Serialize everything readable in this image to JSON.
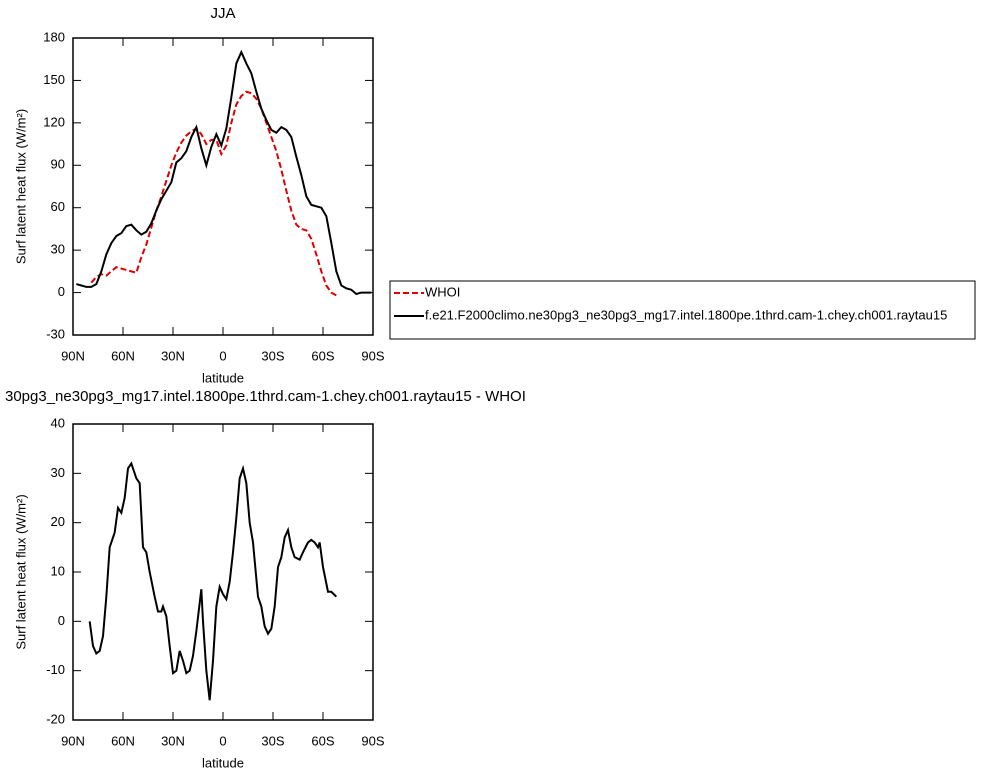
{
  "chart_data": [
    {
      "type": "line",
      "title": "JJA",
      "x_label": "latitude",
      "y_label": "Surf latent heat flux (W/m²)",
      "x": [
        88,
        85,
        82,
        79,
        76,
        73,
        70,
        67,
        64,
        61,
        58,
        55,
        52,
        49,
        46,
        43,
        40,
        37,
        34,
        31,
        28,
        25,
        22,
        19,
        16,
        13,
        10,
        7,
        4,
        1,
        -2,
        -5,
        -8,
        -11,
        -14,
        -17,
        -20,
        -23,
        -26,
        -29,
        -32,
        -35,
        -38,
        -41,
        -44,
        -47,
        -50,
        -53,
        -56,
        -59,
        -62,
        -65,
        -68,
        -71,
        -74,
        -77,
        -80,
        -83,
        -86,
        -89
      ],
      "series": [
        {
          "name": "WHOI",
          "color": "#e00000",
          "dash": true,
          "values": [
            null,
            null,
            null,
            7,
            11,
            13,
            12,
            15,
            18,
            17,
            16,
            15,
            14,
            25,
            34,
            46,
            58,
            68,
            79,
            90,
            99,
            106,
            111,
            114,
            116,
            112,
            105,
            108,
            108,
            98,
            104,
            120,
            133,
            139,
            142,
            141,
            137,
            130,
            120,
            110,
            100,
            87,
            72,
            58,
            48,
            45,
            44,
            38,
            27,
            15,
            5,
            0,
            -2,
            null,
            null,
            null,
            null,
            null,
            null,
            null
          ]
        },
        {
          "name": "f.e21.F2000climo.ne30pg3_ne30pg3_mg17.intel.1800pe.1thrd.cam-1.chey.ch001.raytau15",
          "color": "#000000",
          "dash": false,
          "values": [
            6,
            5,
            4,
            4,
            6,
            15,
            27,
            35,
            40,
            42,
            47,
            48,
            44,
            41,
            43,
            49,
            58,
            66,
            72,
            78,
            92,
            95,
            100,
            110,
            117,
            102,
            90,
            103,
            112,
            104,
            116,
            138,
            162,
            170,
            162,
            155,
            142,
            130,
            122,
            115,
            113,
            117,
            115,
            110,
            96,
            83,
            68,
            62,
            61,
            60,
            54,
            35,
            15,
            5,
            3,
            2,
            -1,
            0,
            0,
            0
          ]
        }
      ],
      "xlim": [
        90,
        -90
      ],
      "xticks": [
        {
          "value": 90,
          "label": "90N"
        },
        {
          "value": 60,
          "label": "60N"
        },
        {
          "value": 30,
          "label": "30N"
        },
        0,
        {
          "value": -30,
          "label": "30S"
        },
        {
          "value": -60,
          "label": "60S"
        },
        {
          "value": -90,
          "label": "90S"
        }
      ],
      "ylim": [
        -30,
        180
      ],
      "yticks": [
        -30,
        0,
        30,
        60,
        90,
        120,
        150,
        180
      ],
      "legend": "right"
    },
    {
      "type": "line",
      "title": "30pg3_ne30pg3_mg17.intel.1800pe.1thrd.cam-1.chey.ch001.raytau15 - WHOI",
      "x_label": "latitude",
      "y_label": "Surf latent heat flux (W/m²)",
      "x": [
        80,
        78,
        76,
        74,
        72,
        70,
        68,
        65,
        63,
        61,
        59,
        57,
        55,
        52,
        50,
        48,
        46,
        44,
        41,
        39,
        37,
        36,
        34,
        32,
        30,
        28,
        26,
        24,
        22,
        20,
        18,
        16,
        13,
        12,
        10,
        8,
        6,
        4,
        2,
        0,
        -2,
        -4,
        -6,
        -8,
        -10,
        -12,
        -14,
        -16,
        -18,
        -21,
        -23,
        -25,
        -27,
        -29,
        -31,
        -33,
        -35,
        -37,
        -39,
        -41,
        -43,
        -46,
        -48,
        -51,
        -53,
        -55,
        -57,
        -58,
        -60,
        -63,
        -65,
        -68
      ],
      "values": [
        0,
        -5,
        -6.5,
        -6,
        -3,
        5,
        15,
        18,
        23,
        22,
        25,
        31,
        32,
        29,
        28,
        15,
        14,
        10,
        5,
        2,
        2,
        3,
        1,
        -5,
        -10.5,
        -10,
        -6,
        -8,
        -10.5,
        -10,
        -7,
        -2,
        6.5,
        0,
        -10,
        -16,
        -8,
        3,
        7,
        5.5,
        4.5,
        8,
        14,
        21,
        29,
        31,
        28,
        20,
        16,
        5,
        3,
        -1,
        -2.5,
        -1.5,
        3,
        11,
        13,
        17,
        18.5,
        15,
        13,
        12.5,
        14,
        16,
        16.5,
        16,
        15,
        16,
        11,
        6,
        6,
        5
      ],
      "color": "#000000",
      "xlim": [
        90,
        -90
      ],
      "xticks": [
        {
          "value": 90,
          "label": "90N"
        },
        {
          "value": 60,
          "label": "60N"
        },
        {
          "value": 30,
          "label": "30N"
        },
        0,
        {
          "value": -30,
          "label": "30S"
        },
        {
          "value": -60,
          "label": "60S"
        },
        {
          "value": -90,
          "label": "90S"
        }
      ],
      "ylim": [
        -20,
        40
      ],
      "yticks": [
        -20,
        -10,
        0,
        10,
        20,
        30,
        40
      ]
    }
  ]
}
